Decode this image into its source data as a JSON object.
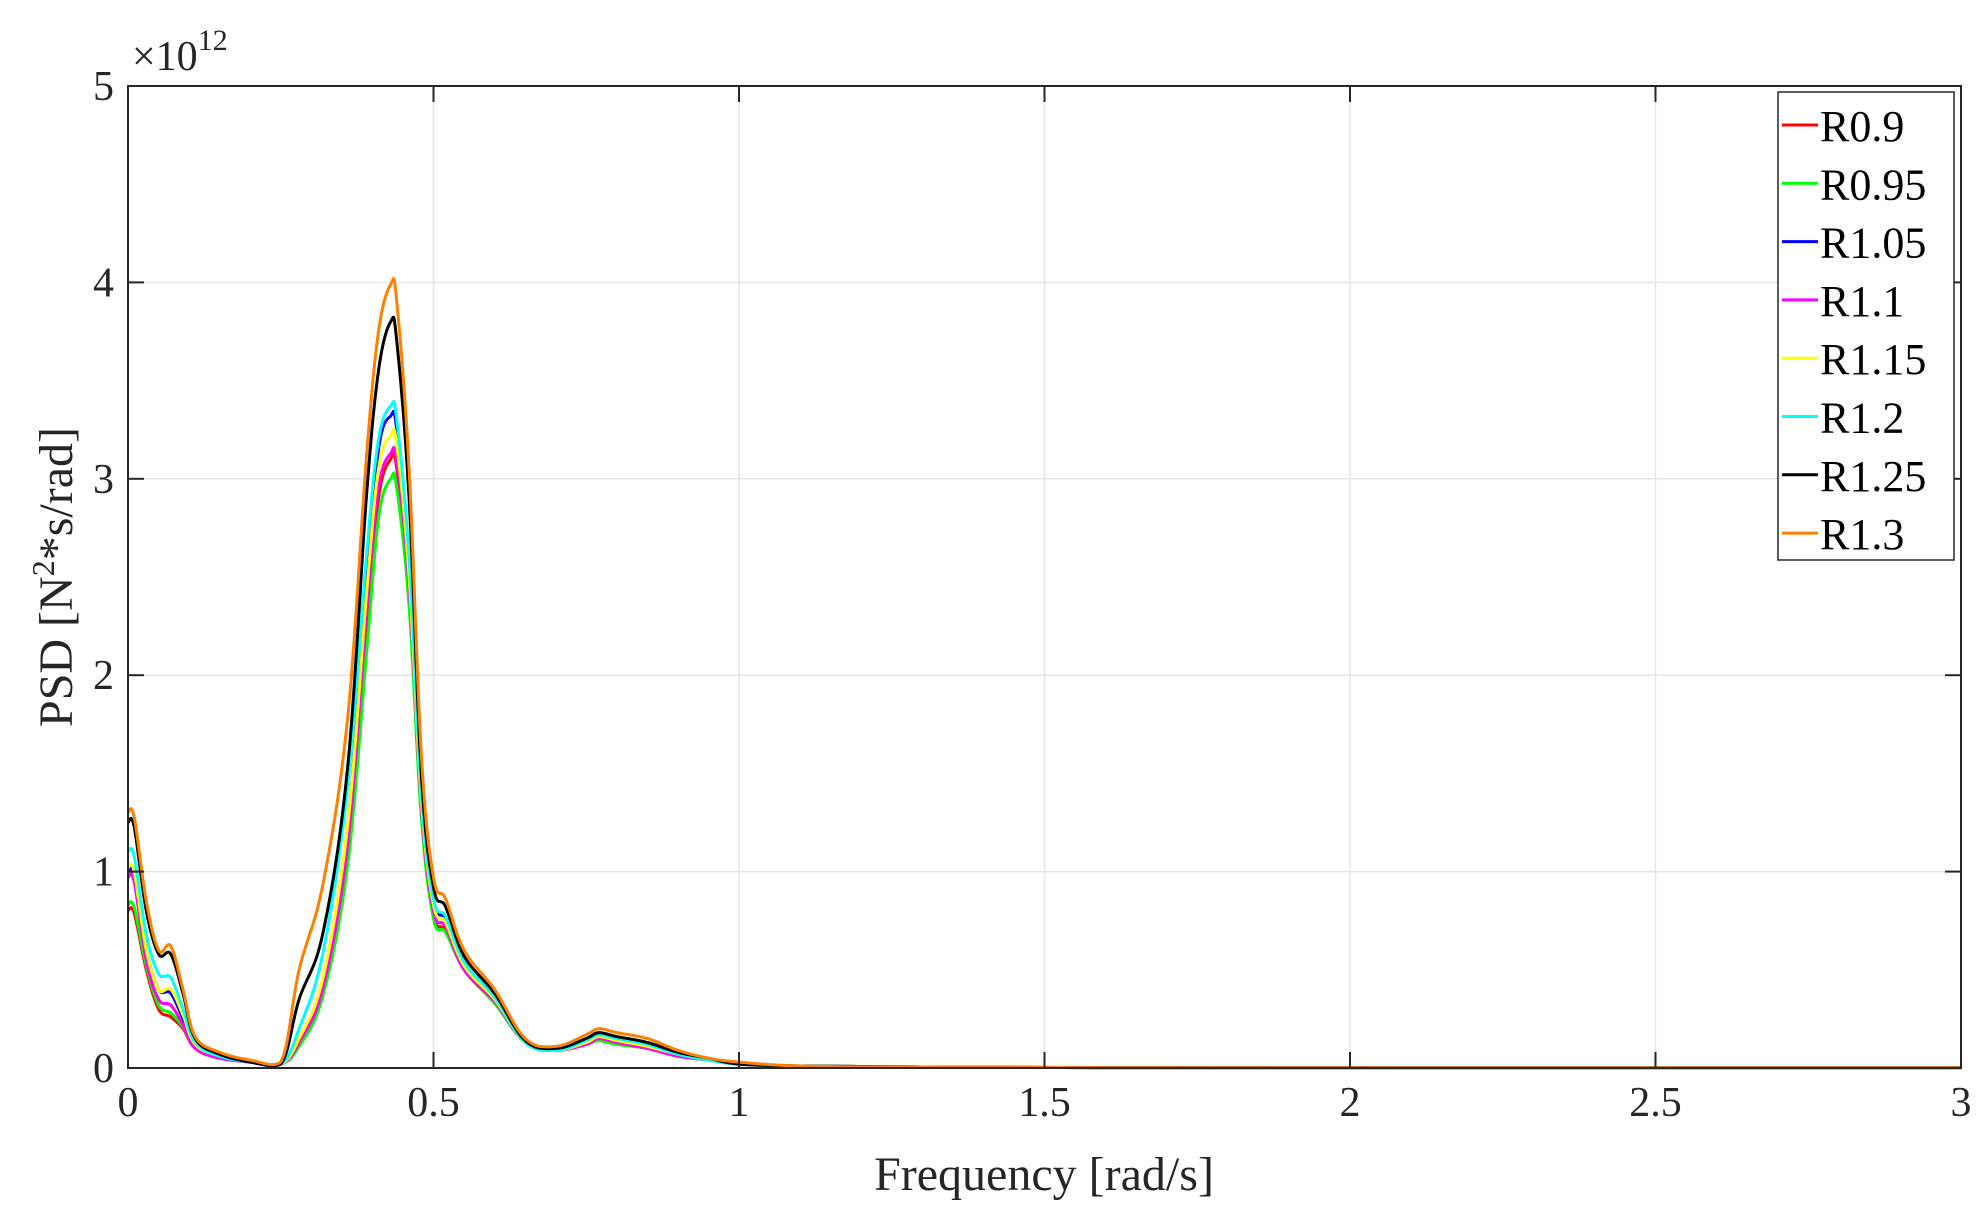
{
  "chart_data": {
    "type": "line",
    "xlabel": "Frequency [rad/s]",
    "ylabel_main": "PSD [N",
    "ylabel_sup": "2",
    "ylabel_tail": "*s/rad]",
    "y_multiplier_base": "×10",
    "y_multiplier_exp": "12",
    "xlim": [
      0,
      3
    ],
    "ylim": [
      0,
      5
    ],
    "x_ticks": [
      0,
      0.5,
      1,
      1.5,
      2,
      2.5,
      3
    ],
    "x_tick_labels": [
      "0",
      "0.5",
      "1",
      "1.5",
      "2",
      "2.5",
      "3"
    ],
    "y_ticks": [
      0,
      1,
      2,
      3,
      4,
      5
    ],
    "y_tick_labels": [
      "0",
      "1",
      "2",
      "3",
      "4",
      "5"
    ],
    "grid": true,
    "legend_position": "top-right",
    "x": [
      0,
      0.01,
      0.03,
      0.05,
      0.07,
      0.09,
      0.11,
      0.15,
      0.2,
      0.25,
      0.28,
      0.32,
      0.36,
      0.39,
      0.41,
      0.43,
      0.44,
      0.46,
      0.48,
      0.5,
      0.52,
      0.55,
      0.6,
      0.65,
      0.7,
      0.75,
      0.77,
      0.8,
      0.85,
      0.9,
      0.95,
      1.0,
      1.1,
      1.3,
      1.6,
      2.0,
      2.5,
      3.0
    ],
    "series": [
      {
        "name": "R0.9",
        "color": "#ff0000",
        "values": [
          0.8,
          0.79,
          0.5,
          0.3,
          0.26,
          0.2,
          0.1,
          0.05,
          0.03,
          0.02,
          0.12,
          0.4,
          1.1,
          2.2,
          2.9,
          3.1,
          3.05,
          2.4,
          1.3,
          0.78,
          0.7,
          0.5,
          0.33,
          0.13,
          0.09,
          0.12,
          0.14,
          0.12,
          0.1,
          0.06,
          0.04,
          0.02,
          0.01,
          0.005,
          0.002,
          0.001,
          0.0005,
          0.0003
        ]
      },
      {
        "name": "R0.95",
        "color": "#00ff00",
        "values": [
          0.83,
          0.82,
          0.52,
          0.32,
          0.28,
          0.21,
          0.1,
          0.05,
          0.03,
          0.02,
          0.11,
          0.38,
          1.05,
          2.1,
          2.8,
          3.0,
          2.95,
          2.35,
          1.28,
          0.76,
          0.69,
          0.5,
          0.33,
          0.13,
          0.09,
          0.12,
          0.14,
          0.12,
          0.1,
          0.06,
          0.04,
          0.02,
          0.01,
          0.005,
          0.002,
          0.001,
          0.0005,
          0.0003
        ]
      },
      {
        "name": "R1.05",
        "color": "#0000ff",
        "values": [
          1.0,
          0.98,
          0.6,
          0.4,
          0.38,
          0.25,
          0.11,
          0.06,
          0.03,
          0.02,
          0.14,
          0.45,
          1.25,
          2.45,
          3.15,
          3.32,
          3.25,
          2.55,
          1.38,
          0.85,
          0.75,
          0.52,
          0.35,
          0.13,
          0.09,
          0.13,
          0.16,
          0.14,
          0.11,
          0.07,
          0.04,
          0.02,
          0.01,
          0.005,
          0.002,
          0.001,
          0.0005,
          0.0003
        ]
      },
      {
        "name": "R1.1",
        "color": "#ff00ff",
        "values": [
          0.97,
          0.95,
          0.55,
          0.35,
          0.32,
          0.22,
          0.1,
          0.05,
          0.03,
          0.02,
          0.13,
          0.42,
          1.15,
          2.3,
          2.95,
          3.13,
          3.08,
          2.45,
          1.33,
          0.8,
          0.72,
          0.5,
          0.34,
          0.13,
          0.09,
          0.12,
          0.15,
          0.13,
          0.1,
          0.06,
          0.04,
          0.02,
          0.01,
          0.005,
          0.002,
          0.001,
          0.0005,
          0.0003
        ]
      },
      {
        "name": "R1.15",
        "color": "#ffff00",
        "values": [
          1.02,
          1.0,
          0.6,
          0.4,
          0.4,
          0.27,
          0.12,
          0.06,
          0.03,
          0.02,
          0.15,
          0.47,
          1.25,
          2.4,
          3.05,
          3.22,
          3.17,
          2.5,
          1.36,
          0.83,
          0.74,
          0.52,
          0.35,
          0.13,
          0.09,
          0.13,
          0.16,
          0.14,
          0.11,
          0.07,
          0.04,
          0.02,
          0.01,
          0.005,
          0.002,
          0.001,
          0.0005,
          0.0003
        ]
      },
      {
        "name": "R1.2",
        "color": "#00ffff",
        "values": [
          1.1,
          1.08,
          0.68,
          0.48,
          0.46,
          0.3,
          0.13,
          0.06,
          0.03,
          0.02,
          0.2,
          0.6,
          1.45,
          2.6,
          3.2,
          3.37,
          3.3,
          2.6,
          1.4,
          0.86,
          0.77,
          0.54,
          0.36,
          0.13,
          0.09,
          0.14,
          0.17,
          0.15,
          0.12,
          0.07,
          0.04,
          0.02,
          0.01,
          0.005,
          0.002,
          0.001,
          0.0005,
          0.0003
        ]
      },
      {
        "name": "R1.25",
        "color": "#000000",
        "values": [
          1.25,
          1.23,
          0.8,
          0.58,
          0.58,
          0.38,
          0.15,
          0.07,
          0.03,
          0.02,
          0.35,
          0.7,
          1.55,
          2.9,
          3.55,
          3.8,
          3.7,
          2.9,
          1.5,
          0.92,
          0.82,
          0.57,
          0.38,
          0.14,
          0.1,
          0.15,
          0.18,
          0.16,
          0.13,
          0.08,
          0.05,
          0.02,
          0.01,
          0.005,
          0.002,
          0.001,
          0.0005,
          0.0003
        ]
      },
      {
        "name": "R1.3",
        "color": "#ff8000",
        "values": [
          1.3,
          1.28,
          0.85,
          0.6,
          0.62,
          0.4,
          0.16,
          0.08,
          0.04,
          0.03,
          0.5,
          0.95,
          1.8,
          3.1,
          3.75,
          3.99,
          3.9,
          3.05,
          1.6,
          0.97,
          0.86,
          0.6,
          0.4,
          0.15,
          0.11,
          0.17,
          0.2,
          0.18,
          0.15,
          0.09,
          0.05,
          0.03,
          0.01,
          0.005,
          0.002,
          0.001,
          0.0005,
          0.0003
        ]
      }
    ]
  }
}
